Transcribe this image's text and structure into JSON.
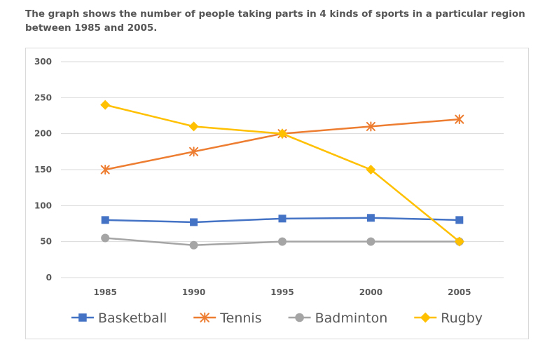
{
  "caption": "The graph shows the number of people taking parts in 4 kinds of sports in a particular region between 1985 and 2005.",
  "chart_data": {
    "type": "line",
    "title": "",
    "xlabel": "",
    "ylabel": "",
    "x": [
      "1985",
      "1990",
      "1995",
      "2000",
      "2005"
    ],
    "ylim": [
      0,
      300
    ],
    "yticks": [
      0,
      50,
      100,
      150,
      200,
      250,
      300
    ],
    "grid": true,
    "legend_position": "bottom",
    "series": [
      {
        "name": "Basketball",
        "values": [
          80,
          77,
          82,
          83,
          80
        ],
        "color": "#4472C4",
        "marker": "square"
      },
      {
        "name": "Tennis",
        "values": [
          150,
          175,
          200,
          210,
          220
        ],
        "color": "#ED7D31",
        "marker": "asterisk"
      },
      {
        "name": "Badminton",
        "values": [
          55,
          45,
          50,
          50,
          50
        ],
        "color": "#A5A5A5",
        "marker": "circle"
      },
      {
        "name": "Rugby",
        "values": [
          240,
          210,
          200,
          150,
          50
        ],
        "color": "#FFC000",
        "marker": "diamond"
      }
    ]
  }
}
